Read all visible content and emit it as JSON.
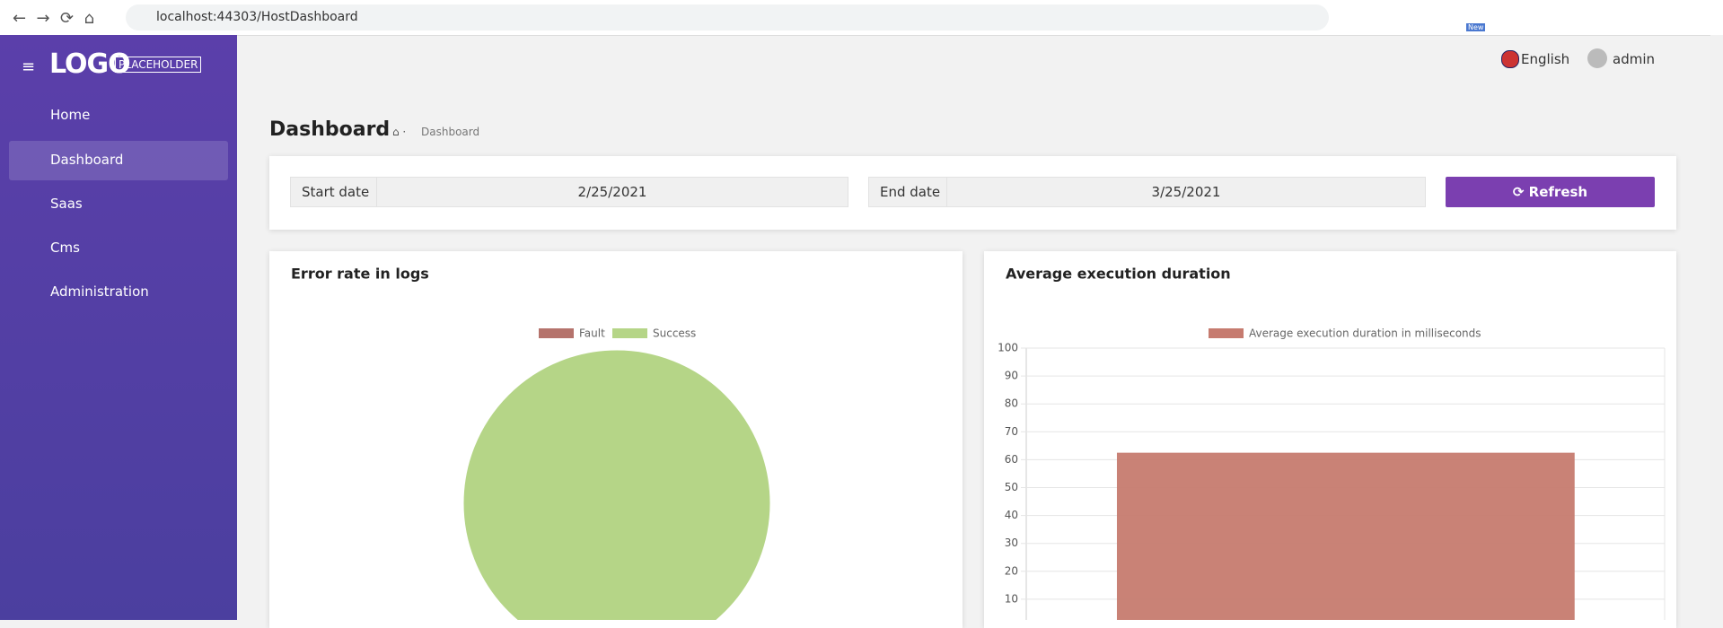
{
  "browser": {
    "url": "localhost:44303/HostDashboard",
    "badge": "New"
  },
  "sidebar": {
    "logo": "LOGO",
    "logo_tag": "PLACEHOLDER",
    "menu": [
      "Home",
      "Dashboard",
      "Saas",
      "Cms",
      "Administration"
    ]
  },
  "header": {
    "language": "English",
    "user": "admin"
  },
  "page": {
    "title": "Dashboard",
    "breadcrumb": "Dashboard"
  },
  "filters": {
    "start_label": "Start date",
    "start_value": "2/25/2021",
    "end_label": "End date",
    "end_value": "3/25/2021",
    "button": "Refresh"
  },
  "chart_data": [
    {
      "type": "pie",
      "title": "Error rate in logs",
      "categories": [
        "Fault",
        "Success"
      ],
      "values": [
        0,
        100
      ],
      "colors": [
        "#b5736c",
        "#b5d587"
      ]
    },
    {
      "type": "bar",
      "title": "Average execution duration",
      "categories": [
        null
      ],
      "series": [
        {
          "name": "Average execution duration in milliseconds",
          "color": "#c67b6f",
          "values": [
            62.5
          ]
        }
      ],
      "ylim": [
        0,
        100
      ],
      "yticks": [
        10,
        20,
        30,
        40,
        50,
        60,
        70,
        80,
        90,
        100
      ],
      "grid": true
    }
  ]
}
